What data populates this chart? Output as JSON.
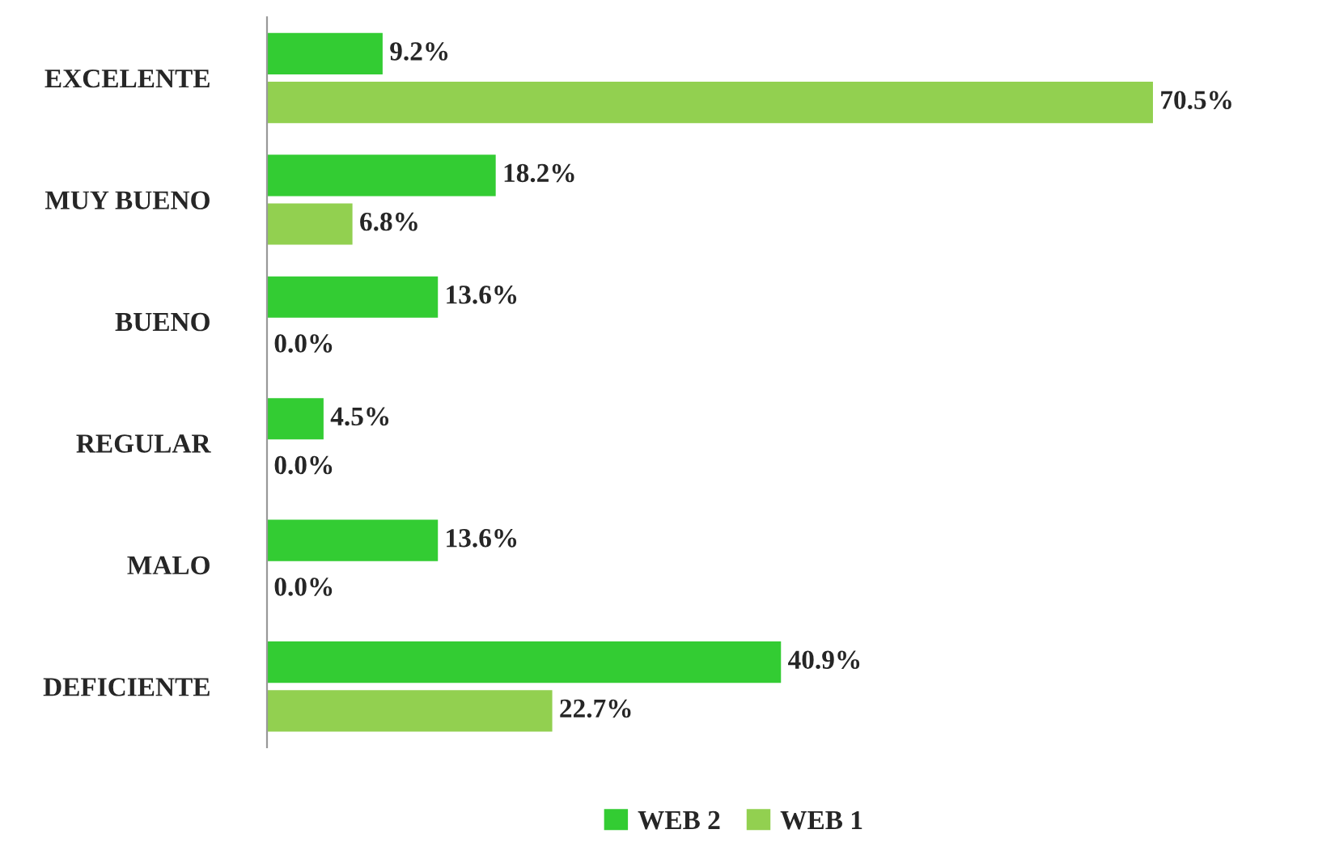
{
  "chart_data": {
    "type": "bar",
    "orientation": "horizontal",
    "categories": [
      "EXCELENTE",
      "MUY BUENO",
      "BUENO",
      "REGULAR",
      "MALO",
      "DEFICIENTE"
    ],
    "series": [
      {
        "name": "WEB 2",
        "color": "#33cc33",
        "values": [
          9.2,
          18.2,
          13.6,
          4.5,
          13.6,
          40.9
        ],
        "value_labels": [
          "9.2%",
          "18.2%",
          "13.6%",
          "4.5%",
          "13.6%",
          "40.9%"
        ]
      },
      {
        "name": "WEB 1",
        "color": "#92d050",
        "values": [
          70.5,
          6.8,
          0.0,
          0.0,
          0.0,
          22.7
        ],
        "value_labels": [
          "70.5%",
          "6.8%",
          "0.0%",
          "0.0%",
          "0.0%",
          "22.7%"
        ]
      }
    ],
    "legend": "bottom",
    "grid": false
  }
}
